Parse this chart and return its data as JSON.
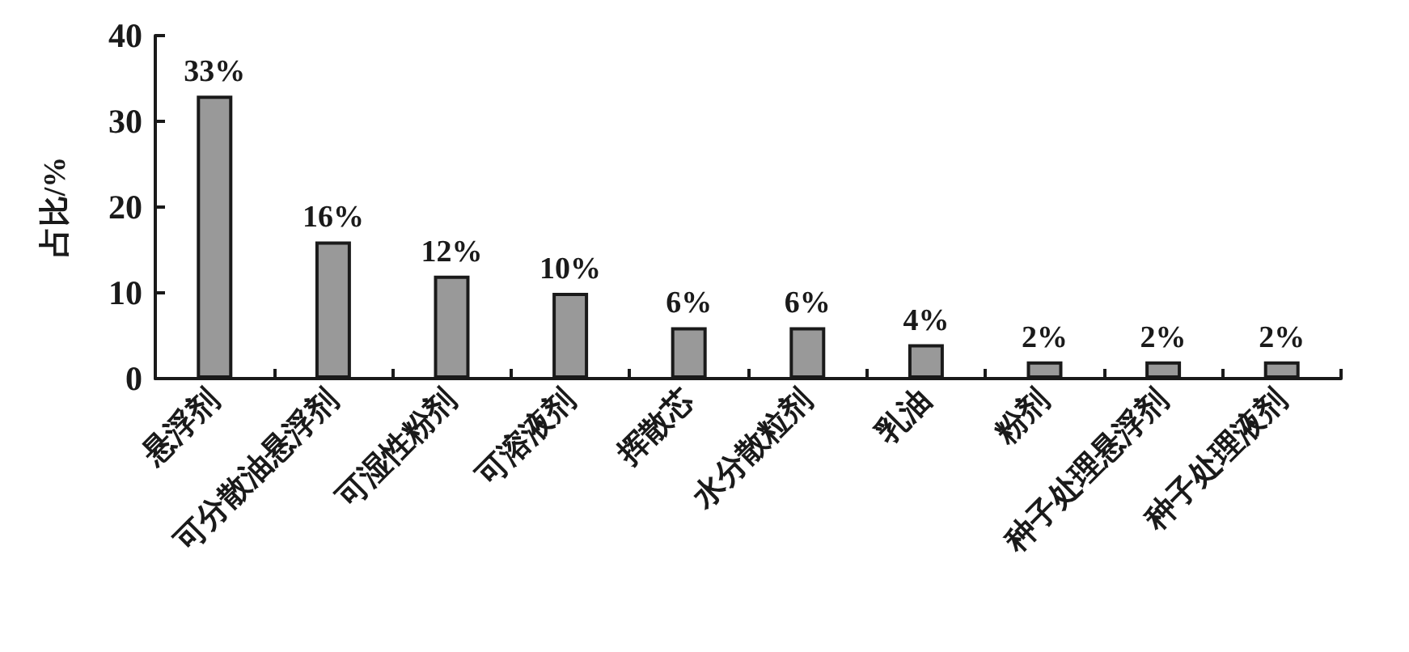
{
  "chart_data": {
    "type": "bar",
    "ylabel": "占比/%",
    "categories": [
      "悬浮剂",
      "可分散油悬浮剂",
      "可湿性粉剂",
      "可溶液剂",
      "挥散芯",
      "水分散粒剂",
      "乳油",
      "粉剂",
      "种子处理悬浮剂",
      "种子处理液剂"
    ],
    "values": [
      33,
      16,
      12,
      10,
      6,
      6,
      4,
      2,
      2,
      2
    ],
    "value_labels": [
      "33%",
      "16%",
      "12%",
      "10%",
      "6%",
      "6%",
      "4%",
      "2%",
      "2%",
      "2%"
    ],
    "color": "#999999",
    "ylim": [
      0,
      40
    ],
    "yticks": [
      0,
      10,
      20,
      30,
      40
    ],
    "grid": false
  }
}
